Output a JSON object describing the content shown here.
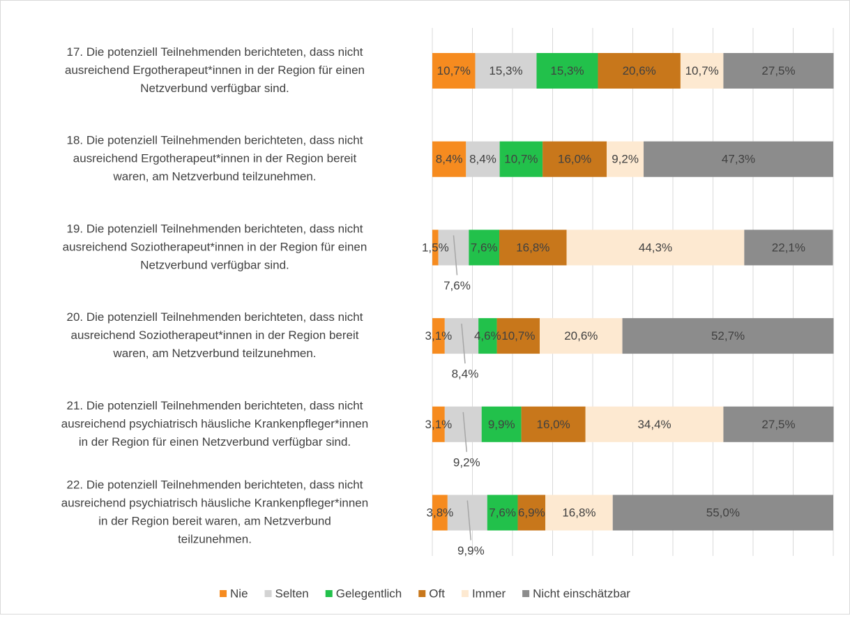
{
  "chart_data": {
    "type": "stacked_barh",
    "categories": [
      [
        "17. Die potenziell Teilnehmenden berichteten, dass nicht",
        "ausreichend Ergotherapeut*innen in der Region für einen",
        "Netzverbund verfügbar sind."
      ],
      [
        "18. Die potenziell Teilnehmenden berichteten, dass nicht",
        "ausreichend Ergotherapeut*innen in der Region bereit",
        "waren, am Netzverbund teilzunehmen."
      ],
      [
        "19. Die potenziell Teilnehmenden berichteten, dass nicht",
        "ausreichend Soziotherapeut*innen in der Region für einen",
        "Netzverbund verfügbar sind."
      ],
      [
        "20. Die potenziell Teilnehmenden berichteten, dass nicht",
        "ausreichend Soziotherapeut*innen in der Region bereit",
        "waren, am Netzverbund teilzunehmen."
      ],
      [
        "21. Die potenziell Teilnehmenden berichteten, dass nicht",
        "ausreichend psychiatrisch häusliche Krankenpfleger*innen",
        "in der Region für einen Netzverbund verfügbar sind."
      ],
      [
        "22. Die potenziell Teilnehmenden berichteten, dass nicht",
        "ausreichend psychiatrisch häusliche Krankenpfleger*innen",
        "in der Region bereit waren, am Netzverbund",
        "teilzunehmen."
      ]
    ],
    "series": [
      {
        "name": "Nie",
        "color": "#f68b1f",
        "values": [
          10.7,
          8.4,
          1.5,
          3.1,
          3.1,
          3.8
        ],
        "value_labels": [
          "10,7%",
          "8,4%",
          "1,5%",
          "3,1%",
          "3,1%",
          "3,8%"
        ]
      },
      {
        "name": "Selten",
        "color": "#d3d3d3",
        "values": [
          15.3,
          8.4,
          7.6,
          8.4,
          9.2,
          9.9
        ],
        "value_labels": [
          "15,3%",
          "8,4%",
          "7,6%",
          "8,4%",
          "9,2%",
          "9,9%"
        ]
      },
      {
        "name": "Gelegentlich",
        "color": "#22c14b",
        "values": [
          15.3,
          10.7,
          7.6,
          4.6,
          9.9,
          7.6
        ],
        "value_labels": [
          "15,3%",
          "10,7%",
          "7,6%",
          "4,6%",
          "9,9%",
          "7,6%"
        ]
      },
      {
        "name": "Oft",
        "color": "#c8771b",
        "values": [
          20.6,
          16.0,
          16.8,
          10.7,
          16.0,
          6.9
        ],
        "value_labels": [
          "20,6%",
          "16,0%",
          "16,8%",
          "10,7%",
          "16,0%",
          "6,9%"
        ]
      },
      {
        "name": "Immer",
        "color": "#fde9d1",
        "values": [
          10.7,
          9.2,
          44.3,
          20.6,
          34.4,
          16.8
        ],
        "value_labels": [
          "10,7%",
          "9,2%",
          "44,3%",
          "20,6%",
          "34,4%",
          "16,8%"
        ]
      },
      {
        "name": "Nicht einschätzbar",
        "color": "#8c8c8c",
        "values": [
          27.5,
          47.3,
          22.1,
          52.7,
          27.5,
          55.0
        ],
        "value_labels": [
          "27,5%",
          "47,3%",
          "22,1%",
          "52,7%",
          "27,5%",
          "55,0%"
        ]
      }
    ],
    "xlim": [
      0,
      100
    ],
    "xticks": [
      0,
      10,
      20,
      30,
      40,
      50,
      60,
      70,
      80,
      90,
      100
    ],
    "grid": true,
    "legend": "bottom"
  }
}
